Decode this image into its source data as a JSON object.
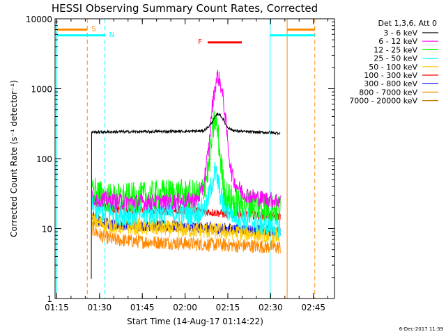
{
  "chart_data": {
    "type": "line",
    "title": "HESSI Observing Summary Count Rates, Corrected",
    "xlabel": "Start Time (14-Aug-17 01:14:22)",
    "ylabel": "Corrected Count Rate (s⁻¹ detector⁻¹)",
    "x_unit": "minutes after 01:14:22",
    "xlim": [
      0,
      98
    ],
    "ylim": [
      1,
      10000
    ],
    "yscale": "log",
    "x_ticks": [
      {
        "value": 0.6,
        "label": "01:15"
      },
      {
        "value": 15.6,
        "label": "01:30"
      },
      {
        "value": 30.6,
        "label": "01:45"
      },
      {
        "value": 45.6,
        "label": "02:00"
      },
      {
        "value": 60.6,
        "label": "02:15"
      },
      {
        "value": 75.6,
        "label": "02:30"
      },
      {
        "value": 90.6,
        "label": "02:45"
      }
    ],
    "y_ticks": [
      {
        "value": 1,
        "label": "1"
      },
      {
        "value": 10,
        "label": "10"
      },
      {
        "value": 100,
        "label": "100"
      },
      {
        "value": 1000,
        "label": "1000"
      },
      {
        "value": 10000,
        "label": "10000"
      }
    ],
    "legend_title": "Det 1,3,6, Att 0",
    "legend_position": "outside-right",
    "series": [
      {
        "name": "3 - 6 keV",
        "color": "#000000",
        "noise": 0.02,
        "points": [
          [
            12.7,
            1.9
          ],
          [
            12.8,
            240
          ],
          [
            20,
            242
          ],
          [
            30,
            243
          ],
          [
            40,
            245
          ],
          [
            50,
            247
          ],
          [
            52,
            250
          ],
          [
            54,
            290
          ],
          [
            56,
            380
          ],
          [
            57,
            440
          ],
          [
            58,
            420
          ],
          [
            59,
            360
          ],
          [
            60,
            300
          ],
          [
            61,
            270
          ],
          [
            63,
            250
          ],
          [
            66,
            244
          ],
          [
            70,
            240
          ],
          [
            75,
            236
          ],
          [
            79,
            232
          ]
        ]
      },
      {
        "name": "6 - 12 keV",
        "color": "#ff00ff",
        "noise": 0.12,
        "points": [
          [
            13,
            28
          ],
          [
            20,
            25
          ],
          [
            30,
            24
          ],
          [
            40,
            24
          ],
          [
            50,
            26
          ],
          [
            52,
            40
          ],
          [
            54,
            150
          ],
          [
            55,
            500
          ],
          [
            56,
            1000
          ],
          [
            57,
            1550
          ],
          [
            58,
            1200
          ],
          [
            59,
            700
          ],
          [
            60,
            300
          ],
          [
            61,
            110
          ],
          [
            62,
            60
          ],
          [
            63,
            45
          ],
          [
            66,
            32
          ],
          [
            70,
            28
          ],
          [
            75,
            26
          ],
          [
            79,
            25
          ]
        ]
      },
      {
        "name": "12 - 25 keV",
        "color": "#00ff00",
        "noise": 0.22,
        "points": [
          [
            13,
            38
          ],
          [
            16,
            30
          ],
          [
            20,
            27
          ],
          [
            30,
            28
          ],
          [
            40,
            32
          ],
          [
            50,
            30
          ],
          [
            52,
            35
          ],
          [
            54,
            80
          ],
          [
            55,
            200
          ],
          [
            56,
            370
          ],
          [
            57,
            250
          ],
          [
            58,
            100
          ],
          [
            59,
            45
          ],
          [
            60,
            30
          ],
          [
            63,
            24
          ],
          [
            70,
            22
          ],
          [
            75,
            20
          ],
          [
            79,
            19
          ]
        ]
      },
      {
        "name": "25 - 50 keV",
        "color": "#00ffff",
        "noise": 0.18,
        "points": [
          [
            13,
            22
          ],
          [
            16,
            18
          ],
          [
            20,
            17
          ],
          [
            30,
            16
          ],
          [
            40,
            17
          ],
          [
            50,
            17
          ],
          [
            53,
            20
          ],
          [
            55,
            45
          ],
          [
            56,
            65
          ],
          [
            57,
            50
          ],
          [
            58,
            30
          ],
          [
            59,
            22
          ],
          [
            61,
            18
          ],
          [
            66,
            14
          ],
          [
            72,
            12
          ],
          [
            79,
            11
          ]
        ]
      },
      {
        "name": "50 - 100 keV",
        "color": "#ffcc00",
        "noise": 0.12,
        "points": [
          [
            13,
            13
          ],
          [
            20,
            11
          ],
          [
            40,
            10
          ],
          [
            60,
            9
          ],
          [
            70,
            8.5
          ],
          [
            79,
            8
          ]
        ]
      },
      {
        "name": "100 - 300 keV",
        "color": "#ff0000",
        "noise": 0.06,
        "points": [
          [
            13,
            26
          ],
          [
            16,
            21
          ],
          [
            20,
            19
          ],
          [
            30,
            18
          ],
          [
            40,
            18
          ],
          [
            50,
            18
          ],
          [
            56,
            17
          ],
          [
            60,
            16
          ],
          [
            70,
            15.5
          ],
          [
            79,
            15
          ]
        ]
      },
      {
        "name": "300 - 800 keV",
        "color": "#0000ff",
        "noise": 0.08,
        "points": [
          [
            13,
            15
          ],
          [
            16,
            12.5
          ],
          [
            20,
            11.5
          ],
          [
            30,
            11
          ],
          [
            40,
            11
          ],
          [
            50,
            10.5
          ],
          [
            60,
            10
          ],
          [
            70,
            9.5
          ],
          [
            79,
            9
          ]
        ]
      },
      {
        "name": "800 - 7000 keV",
        "color": "#ff8800",
        "noise": 0.1,
        "points": [
          [
            13,
            10
          ],
          [
            16,
            8
          ],
          [
            20,
            7
          ],
          [
            30,
            6.5
          ],
          [
            40,
            6.3
          ],
          [
            50,
            6
          ],
          [
            60,
            5.8
          ],
          [
            70,
            5.6
          ],
          [
            79,
            5.4
          ]
        ]
      },
      {
        "name": "7000 - 20000 keV",
        "color": "#bb7700",
        "noise": 0.05,
        "points": [
          [
            13,
            12
          ],
          [
            20,
            11
          ],
          [
            40,
            10
          ],
          [
            60,
            9.5
          ],
          [
            79,
            9
          ]
        ]
      }
    ],
    "vertical_lines": [
      {
        "x": 0.6,
        "color": "#00ffff",
        "dashed": false
      },
      {
        "x": 11.3,
        "color": "#ff8800",
        "dashed": true
      },
      {
        "x": 17.5,
        "color": "#00ffff",
        "dashed": true
      },
      {
        "x": 75.4,
        "color": "#00ffff",
        "dashed": false
      },
      {
        "x": 81.4,
        "color": "#ff8800",
        "dashed": false
      },
      {
        "x": 91.1,
        "color": "#ff8800",
        "dashed": true
      }
    ],
    "flag_bars": [
      {
        "label": "S",
        "color": "#ff8800",
        "x0": 0.6,
        "x1": 11.3,
        "y": 7000
      },
      {
        "label": "N",
        "color": "#00ffff",
        "x0": 0.6,
        "x1": 17.5,
        "y": 5800
      },
      {
        "label": "",
        "color": "#00ffff",
        "x0": 75.4,
        "x1": 91.1,
        "y": 5800
      },
      {
        "label": "",
        "color": "#ff8800",
        "x0": 81.4,
        "x1": 91.1,
        "y": 7000
      },
      {
        "label": "F",
        "color": "#ff0000",
        "x0": 53.5,
        "x1": 65.5,
        "y": 4600
      }
    ],
    "footer": "6-Dec-2017 11:39"
  }
}
